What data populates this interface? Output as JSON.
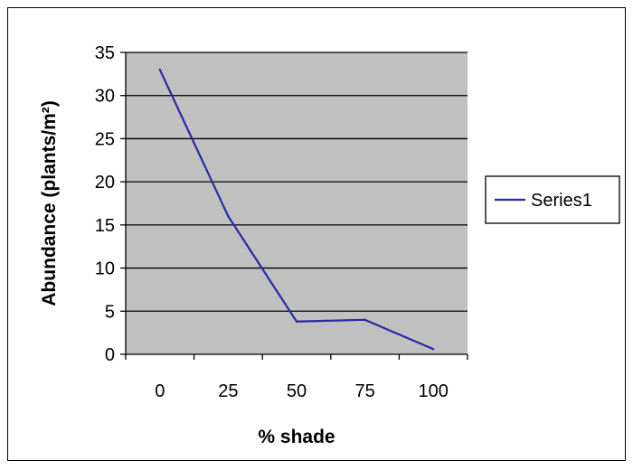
{
  "chart_data": {
    "type": "line",
    "title": "",
    "xlabel": "% shade",
    "ylabel": "Abundance (plants/m²)",
    "categories": [
      "0",
      "25",
      "50",
      "75",
      "100"
    ],
    "ylim": [
      0,
      35
    ],
    "yticks": [
      0,
      5,
      10,
      15,
      20,
      25,
      30,
      35
    ],
    "grid": "horizontal",
    "plot_background": "#c0c0c0",
    "legend_position": "right",
    "series": [
      {
        "name": "Series1",
        "color": "#2929a3",
        "values": [
          33,
          16,
          3.8,
          4,
          0.6
        ]
      }
    ]
  }
}
